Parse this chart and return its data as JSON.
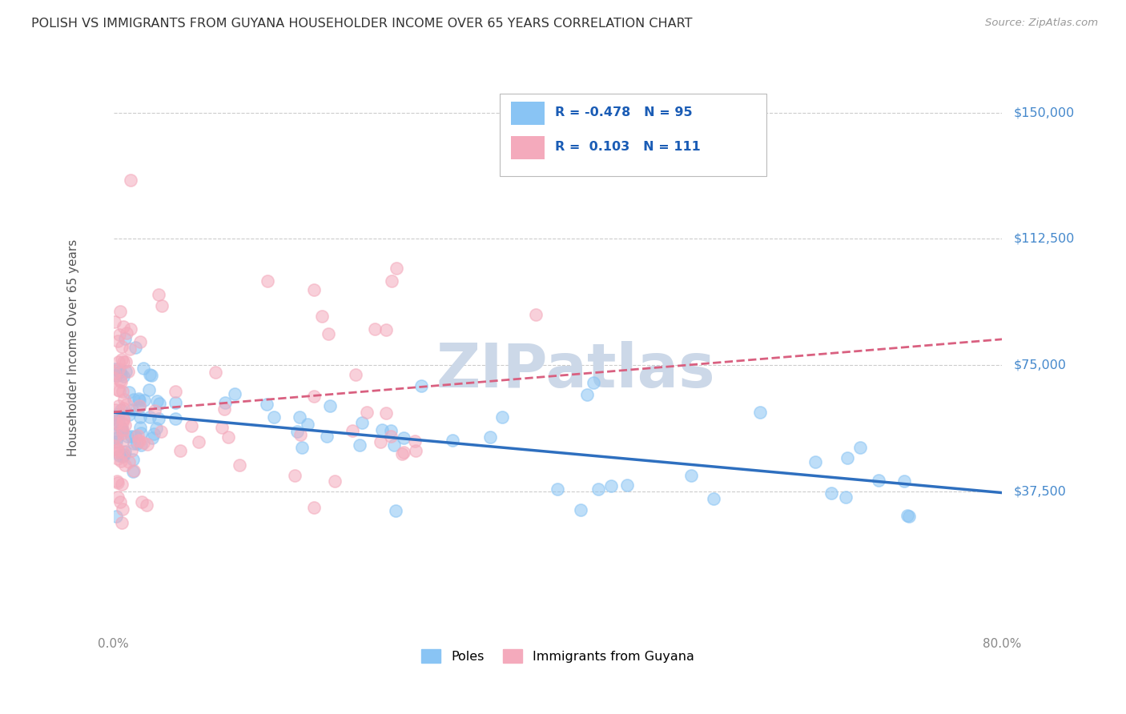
{
  "title": "POLISH VS IMMIGRANTS FROM GUYANA HOUSEHOLDER INCOME OVER 65 YEARS CORRELATION CHART",
  "source": "Source: ZipAtlas.com",
  "ylabel": "Householder Income Over 65 years",
  "watermark": "ZIPatlas",
  "poles_R": -0.478,
  "poles_N": 95,
  "guyana_R": 0.103,
  "guyana_N": 111,
  "y_ticks": [
    37500,
    75000,
    112500,
    150000
  ],
  "y_tick_labels": [
    "$37,500",
    "$75,000",
    "$112,500",
    "$150,000"
  ],
  "x_range": [
    0.0,
    0.8
  ],
  "y_range": [
    -5000,
    165000
  ],
  "poles_color": "#89C4F4",
  "poles_edge_color": "#89C4F4",
  "guyana_color": "#F4AABC",
  "guyana_edge_color": "#F4AABC",
  "poles_line_color": "#2E6FBF",
  "guyana_line_color": "#D96080",
  "background_color": "#ffffff",
  "grid_color": "#cccccc",
  "watermark_color": "#ccd8e8",
  "watermark_fontsize": 55,
  "legend_text_color": "#1a5cb5",
  "title_color": "#333333",
  "source_color": "#999999",
  "ylabel_color": "#555555",
  "tick_label_color": "#888888",
  "right_label_color": "#4488cc"
}
